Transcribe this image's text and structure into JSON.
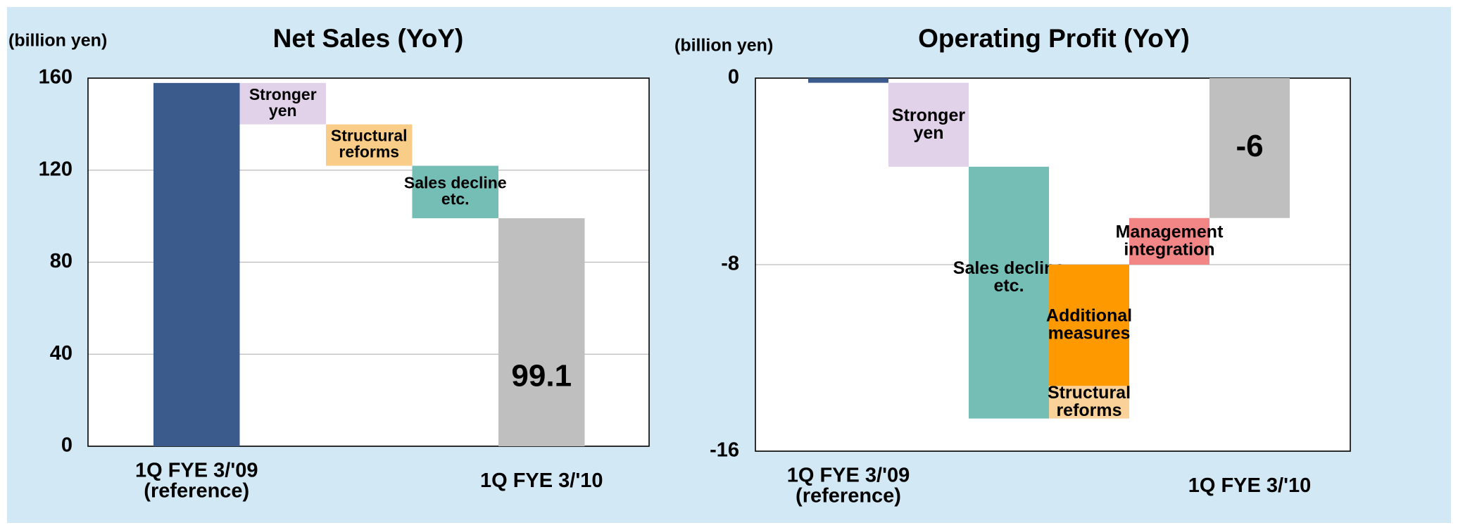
{
  "chart_data": [
    {
      "type": "waterfall",
      "title": "Net Sales (YoY)",
      "y_label": "(billion yen)",
      "categories": [
        "1Q FYE 3/'09\n(reference)",
        "Stronger\nyen",
        "Structural\nreforms",
        "Sales decline\netc.",
        "1Q FYE 3/'10"
      ],
      "values": [
        157.9,
        -18,
        -18,
        -22.8,
        99.1
      ],
      "measure": [
        "absolute",
        "relative",
        "relative",
        "relative",
        "total"
      ],
      "colors": [
        "#3b5b8d",
        "#e1d2e9",
        "#f9cc88",
        "#74beb6",
        "#bfbfbf"
      ],
      "value_label_color": "#000000",
      "ylim": [
        0,
        160
      ],
      "yticks": [
        0,
        40,
        80,
        120,
        160
      ],
      "ytick_colors": [
        "#000000",
        "#000000",
        "#000000",
        "#000000",
        "#000000"
      ],
      "grid": true
    },
    {
      "type": "waterfall",
      "title": "Operating Profit (YoY)",
      "y_label": "(billion yen)",
      "categories": [
        "1Q FYE 3/'09\n(reference)",
        "Stronger\nyen",
        "Sales decline\netc.",
        "Structural\nreforms",
        "Additional\nmeasures",
        "Management\nintegration",
        "1Q FYE 3/'10"
      ],
      "values": [
        -0.2,
        -3.6,
        -10.8,
        1.4,
        5.2,
        2.0,
        -6.0
      ],
      "measure": [
        "absolute",
        "relative",
        "relative",
        "relative",
        "relative",
        "relative",
        "total"
      ],
      "colors": [
        "#3b5b8d",
        "#e1d2e9",
        "#74beb6",
        "#fbd19a",
        "#ff9900",
        "#f28585",
        "#bfbfbf"
      ],
      "value_label_color": "#ff0000",
      "ylim": [
        -16,
        0
      ],
      "yticks": [
        -16,
        -8,
        0
      ],
      "ytick_colors": [
        "#ff0000",
        "#ff0000",
        "#000000"
      ],
      "grid": true
    }
  ]
}
